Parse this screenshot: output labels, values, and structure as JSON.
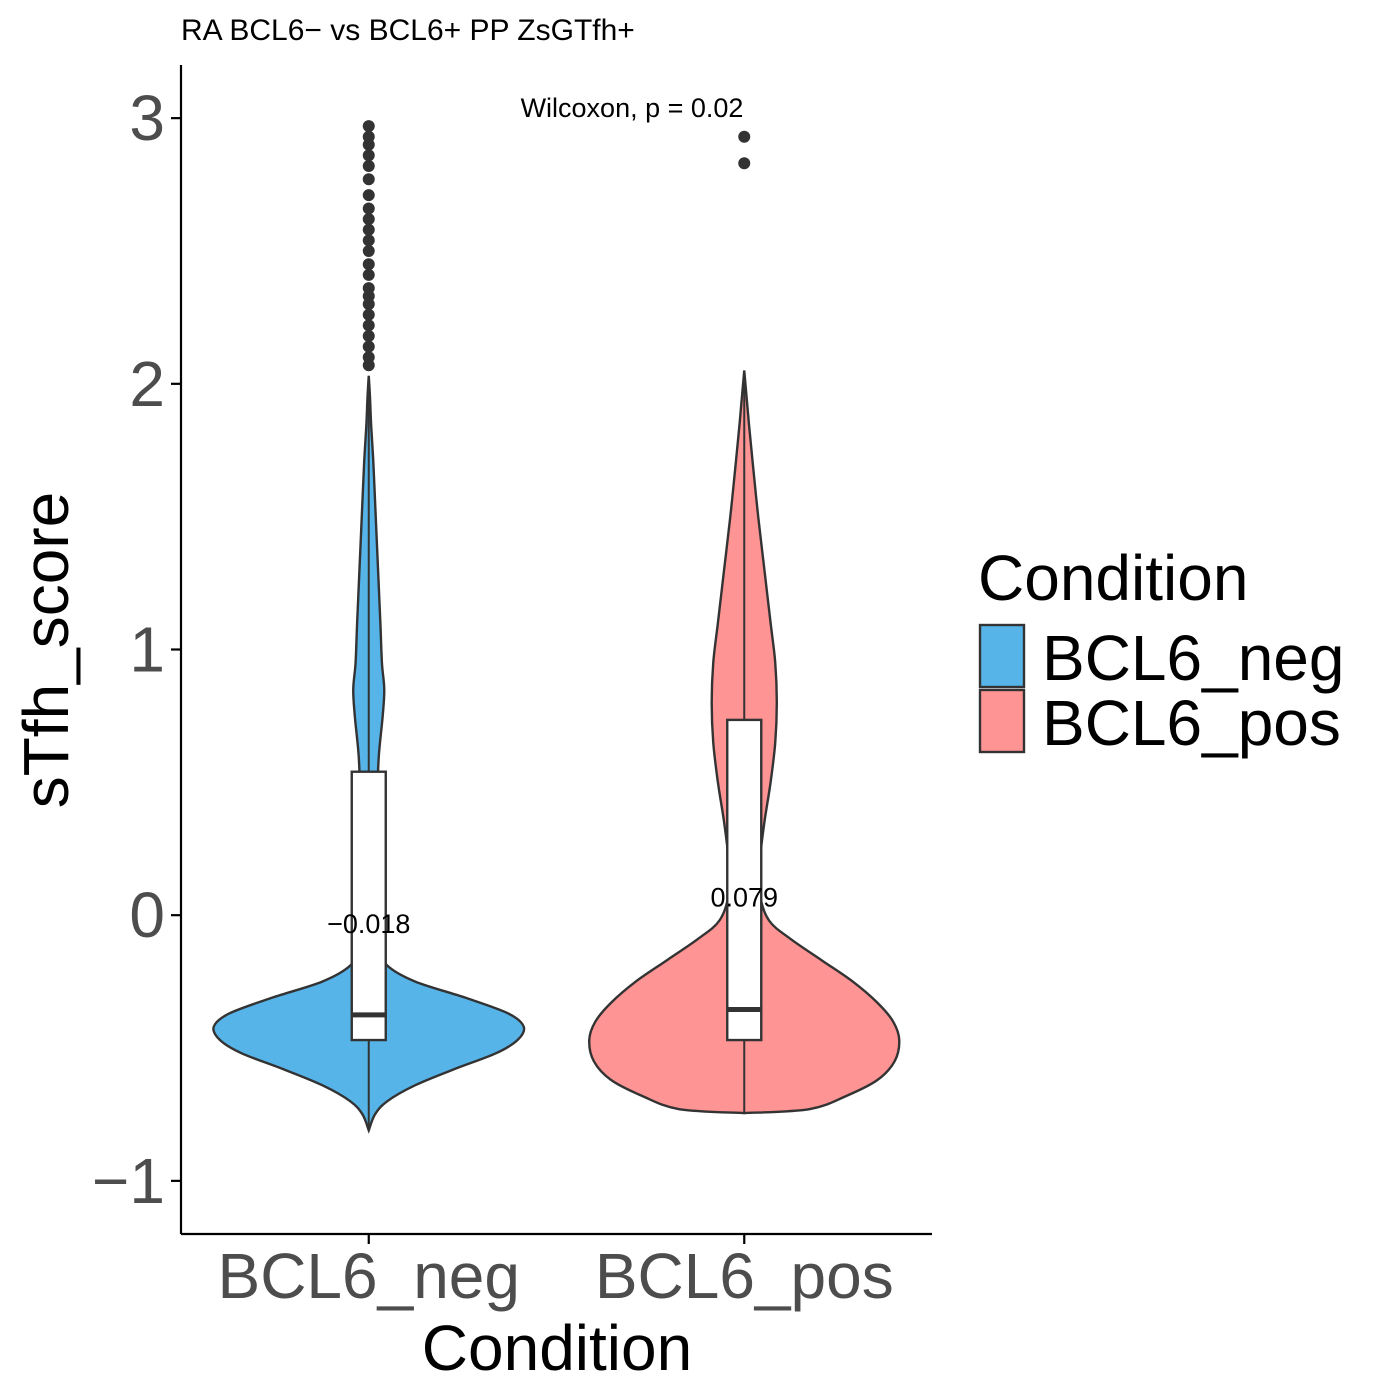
{
  "chart_data": {
    "type": "violin",
    "title": "RA  BCL6− vs BCL6+ PP ZsGTfh+",
    "xlabel": "Condition",
    "ylabel": "sTfh_score",
    "ylim": [
      -1.2,
      3.2
    ],
    "yticks": [
      -1,
      0,
      1,
      2,
      3
    ],
    "ytick_labels": [
      "−1",
      "0",
      "1",
      "2",
      "3"
    ],
    "categories": [
      "BCL6_neg",
      "BCL6_pos"
    ],
    "stat_test_label": "Wilcoxon, p = 0.02",
    "legend": {
      "title": "Condition",
      "position": "right",
      "entries": [
        {
          "name": "BCL6_neg",
          "color": "#56B4E9"
        },
        {
          "name": "BCL6_pos",
          "color": "#FF9494"
        }
      ]
    },
    "grid": false,
    "series": [
      {
        "name": "BCL6_neg",
        "color": "#56B4E9",
        "mean_label": "−0.018",
        "mean_label_y": -0.03,
        "box": {
          "q1": -0.47,
          "median": -0.375,
          "q3": 0.54,
          "whisker_low": -0.81,
          "whisker_high": 2.03
        },
        "violin_density": [
          [
            -0.81,
            0.0
          ],
          [
            -0.75,
            0.04
          ],
          [
            -0.7,
            0.12
          ],
          [
            -0.64,
            0.3
          ],
          [
            -0.58,
            0.55
          ],
          [
            -0.52,
            0.82
          ],
          [
            -0.47,
            0.96
          ],
          [
            -0.42,
            1.0
          ],
          [
            -0.37,
            0.9
          ],
          [
            -0.31,
            0.62
          ],
          [
            -0.25,
            0.3
          ],
          [
            -0.19,
            0.12
          ],
          [
            -0.12,
            0.06
          ],
          [
            0.0,
            0.045
          ],
          [
            0.15,
            0.04
          ],
          [
            0.3,
            0.05
          ],
          [
            0.45,
            0.055
          ],
          [
            0.6,
            0.065
          ],
          [
            0.75,
            0.09
          ],
          [
            0.85,
            0.1
          ],
          [
            0.95,
            0.085
          ],
          [
            1.1,
            0.075
          ],
          [
            1.3,
            0.06
          ],
          [
            1.5,
            0.045
          ],
          [
            1.7,
            0.03
          ],
          [
            1.85,
            0.015
          ],
          [
            1.95,
            0.008
          ],
          [
            2.03,
            0.0
          ]
        ],
        "outliers": [
          2.07,
          2.1,
          2.14,
          2.18,
          2.22,
          2.26,
          2.3,
          2.33,
          2.36,
          2.41,
          2.45,
          2.5,
          2.54,
          2.58,
          2.62,
          2.66,
          2.71,
          2.77,
          2.82,
          2.86,
          2.9,
          2.93,
          2.97
        ]
      },
      {
        "name": "BCL6_pos",
        "color": "#FF9494",
        "mean_label": "0.079",
        "mean_label_y": 0.07,
        "box": {
          "q1": -0.47,
          "median": -0.355,
          "q3": 0.735,
          "whisker_low": -0.745,
          "whisker_high": 2.05
        },
        "violin_density": [
          [
            -0.745,
            0.0
          ],
          [
            -0.73,
            0.42
          ],
          [
            -0.68,
            0.66
          ],
          [
            -0.62,
            0.86
          ],
          [
            -0.55,
            0.97
          ],
          [
            -0.47,
            1.0
          ],
          [
            -0.4,
            0.96
          ],
          [
            -0.33,
            0.86
          ],
          [
            -0.25,
            0.7
          ],
          [
            -0.17,
            0.5
          ],
          [
            -0.09,
            0.3
          ],
          [
            -0.02,
            0.16
          ],
          [
            0.08,
            0.1
          ],
          [
            0.2,
            0.1
          ],
          [
            0.35,
            0.13
          ],
          [
            0.5,
            0.17
          ],
          [
            0.65,
            0.2
          ],
          [
            0.8,
            0.21
          ],
          [
            0.95,
            0.2
          ],
          [
            1.1,
            0.17
          ],
          [
            1.3,
            0.13
          ],
          [
            1.5,
            0.09
          ],
          [
            1.7,
            0.055
          ],
          [
            1.85,
            0.03
          ],
          [
            1.97,
            0.012
          ],
          [
            2.05,
            0.0
          ]
        ],
        "outliers": [
          2.83,
          2.93
        ]
      }
    ]
  }
}
